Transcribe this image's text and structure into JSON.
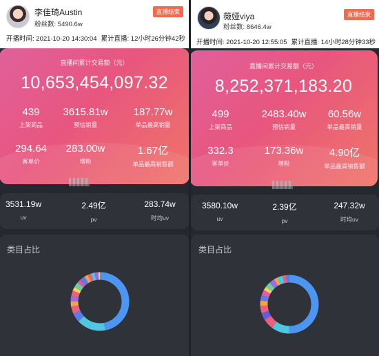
{
  "streams": [
    {
      "name": "李佳琦Austin",
      "fans_label": "粉丝数:",
      "fans_value": "5490.6w",
      "badge": "直播结束",
      "start_label": "开播时间:",
      "start_value": "2021-10-20 14:30:04",
      "duration_label": "累计直播:",
      "duration_value": "12小时26分钟42秒",
      "card_title": "直播间累计交易额（元）",
      "total": "10,653,454,097.32",
      "stats": [
        {
          "value": "439",
          "label": "上架商品"
        },
        {
          "value": "3615.81w",
          "label": "预估销量"
        },
        {
          "value": "187.77w",
          "label": "单品最高销量"
        },
        {
          "value": "294.64",
          "label": "客单价"
        },
        {
          "value": "283.00w",
          "label": "增粉"
        },
        {
          "value": "1.67亿",
          "label": "单品最高销售额"
        }
      ],
      "traffic": [
        {
          "value": "3531.19w",
          "label": "uv"
        },
        {
          "value": "2.49亿",
          "label": "pv"
        },
        {
          "value": "283.74w",
          "label": "时均uv"
        }
      ],
      "category_title": "类目占比"
    },
    {
      "name": "薇娅viya",
      "fans_label": "粉丝数:",
      "fans_value": "8646.4w",
      "badge": "直播结束",
      "start_label": "开播时间:",
      "start_value": "2021-10-20 12:55:05",
      "duration_label": "累计直播:",
      "duration_value": "14小时28分钟33秒",
      "card_title": "直播间累计交易额（元）",
      "total": "8,252,371,183.20",
      "stats": [
        {
          "value": "499",
          "label": "上架商品"
        },
        {
          "value": "2483.40w",
          "label": "预估销量"
        },
        {
          "value": "60.56w",
          "label": "单品最高销量"
        },
        {
          "value": "332.3",
          "label": "客单价"
        },
        {
          "value": "173.36w",
          "label": "增粉"
        },
        {
          "value": "4.90亿",
          "label": "单品最高销售额"
        }
      ],
      "traffic": [
        {
          "value": "3580.10w",
          "label": "uv"
        },
        {
          "value": "2.39亿",
          "label": "pv"
        },
        {
          "value": "247.32w",
          "label": "时均uv"
        }
      ],
      "category_title": "类目占比"
    }
  ],
  "colors": {
    "card_gradient": [
      "#e0609b",
      "#e8567e",
      "#ef7568"
    ],
    "badge": "#f26b4e",
    "panel": "#30323a",
    "background": "#26282f",
    "donut_main": "#4c96f2",
    "donut_second": "#4fc7e0"
  },
  "donut_segments": [
    [
      {
        "share": 0.47,
        "color": "#4c96f2"
      },
      {
        "share": 0.16,
        "color": "#4fc7e0"
      },
      {
        "share": 0.05,
        "color": "#5a7de8"
      },
      {
        "share": 0.04,
        "color": "#e9627c"
      },
      {
        "share": 0.03,
        "color": "#f1a24a"
      },
      {
        "share": 0.03,
        "color": "#9b6ce0"
      },
      {
        "share": 0.03,
        "color": "#e9627c"
      },
      {
        "share": 0.02,
        "color": "#f4d35e"
      },
      {
        "share": 0.03,
        "color": "#6ad0a4"
      },
      {
        "share": 0.02,
        "color": "#e05da6"
      },
      {
        "share": 0.03,
        "color": "#5a7de8"
      },
      {
        "share": 0.02,
        "color": "#f1a24a"
      },
      {
        "share": 0.02,
        "color": "#e9627c"
      },
      {
        "share": 0.02,
        "color": "#4fc7e0"
      },
      {
        "share": 0.02,
        "color": "#9b6ce0"
      },
      {
        "share": 0.01,
        "color": "#f4d35e"
      }
    ],
    [
      {
        "share": 0.5,
        "color": "#4c96f2"
      },
      {
        "share": 0.1,
        "color": "#4fc7e0"
      },
      {
        "share": 0.06,
        "color": "#e9627c"
      },
      {
        "share": 0.04,
        "color": "#6a5ad8"
      },
      {
        "share": 0.04,
        "color": "#e9627c"
      },
      {
        "share": 0.03,
        "color": "#f1a24a"
      },
      {
        "share": 0.03,
        "color": "#5a7de8"
      },
      {
        "share": 0.03,
        "color": "#e05da6"
      },
      {
        "share": 0.02,
        "color": "#f4d35e"
      },
      {
        "share": 0.03,
        "color": "#6ad0a4"
      },
      {
        "share": 0.03,
        "color": "#9b6ce0"
      },
      {
        "share": 0.02,
        "color": "#f1a24a"
      },
      {
        "share": 0.03,
        "color": "#4fc7e0"
      },
      {
        "share": 0.02,
        "color": "#e9627c"
      },
      {
        "share": 0.02,
        "color": "#5a7de8"
      }
    ]
  ]
}
